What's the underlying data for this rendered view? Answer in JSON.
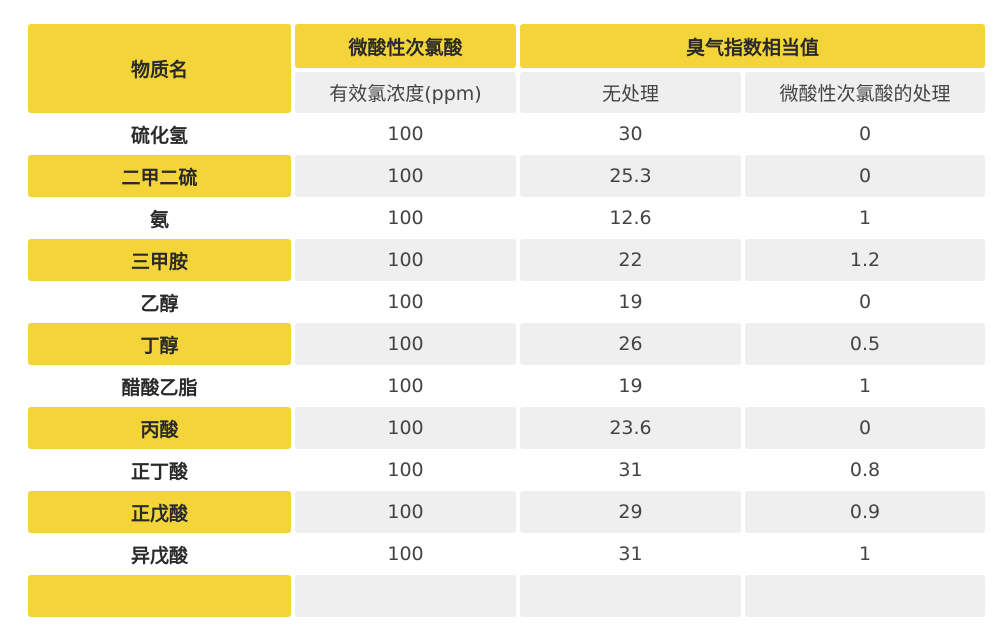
{
  "header": {
    "substance_name": "物质名",
    "acid_group": "微酸性次氯酸",
    "odor_group": "臭气指数相当值",
    "acid_sub": "有效氯浓度(ppm)",
    "untreated": "无处理",
    "treated": "微酸性次氯酸的处理"
  },
  "rows": [
    {
      "name": "硫化氢",
      "ppm": "100",
      "untreated": "30",
      "treated": "0"
    },
    {
      "name": "二甲二硫",
      "ppm": "100",
      "untreated": "25.3",
      "treated": "0"
    },
    {
      "name": "氨",
      "ppm": "100",
      "untreated": "12.6",
      "treated": "1"
    },
    {
      "name": "三甲胺",
      "ppm": "100",
      "untreated": "22",
      "treated": "1.2"
    },
    {
      "name": "乙醇",
      "ppm": "100",
      "untreated": "19",
      "treated": "0"
    },
    {
      "name": "丁醇",
      "ppm": "100",
      "untreated": "26",
      "treated": "0.5"
    },
    {
      "name": "醋酸乙脂",
      "ppm": "100",
      "untreated": "19",
      "treated": "1"
    },
    {
      "name": "丙酸",
      "ppm": "100",
      "untreated": "23.6",
      "treated": "0"
    },
    {
      "name": "正丁酸",
      "ppm": "100",
      "untreated": "31",
      "treated": "0.8"
    },
    {
      "name": "正戊酸",
      "ppm": "100",
      "untreated": "29",
      "treated": "0.9"
    },
    {
      "name": "异戊酸",
      "ppm": "100",
      "untreated": "31",
      "treated": "1"
    },
    {
      "name": "",
      "ppm": "",
      "untreated": "",
      "treated": ""
    }
  ],
  "colors": {
    "accent": "#f3d53a",
    "band": "#efefef"
  }
}
